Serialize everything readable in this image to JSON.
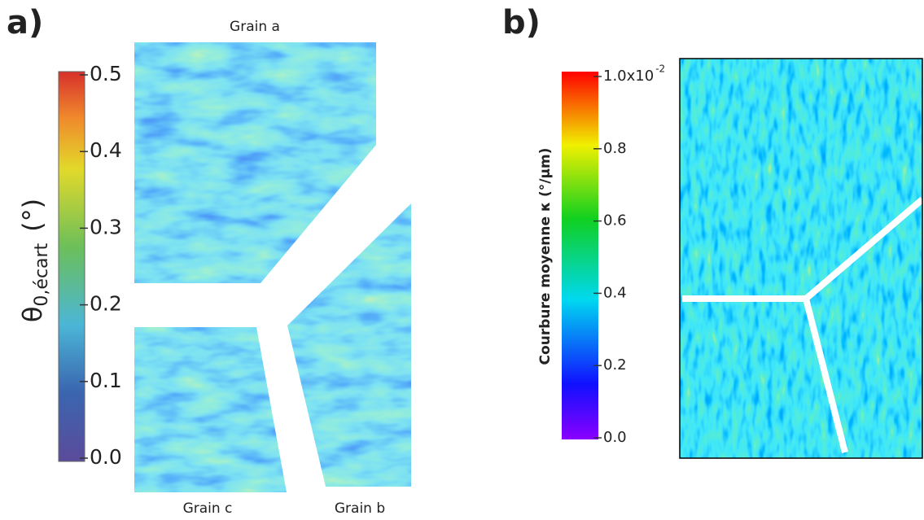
{
  "panels": [
    {
      "label": "a)",
      "colorbar": {
        "title": "θ",
        "title_subscript": "0,écart",
        "title_unit": "(°)",
        "lim": [
          0,
          0.5
        ],
        "ticks": [
          {
            "value": 0,
            "label": "0.0"
          },
          0.1,
          0.2,
          0.3,
          0.4,
          0.5
        ]
      },
      "grains": [
        "Grain a",
        "Grain b",
        "Grain c"
      ]
    },
    {
      "label": "b)",
      "colorbar": {
        "title": "Courbure moyenne κ (°/µm)",
        "lim": [
          0,
          1.0
        ],
        "ticks": [
          {
            "value": 0,
            "label": "0.0"
          },
          0.2,
          0.4,
          0.6,
          0.8,
          {
            "value": 1.0,
            "label": "1.0x10"
          }
        ],
        "exponent": "-2"
      }
    }
  ]
}
